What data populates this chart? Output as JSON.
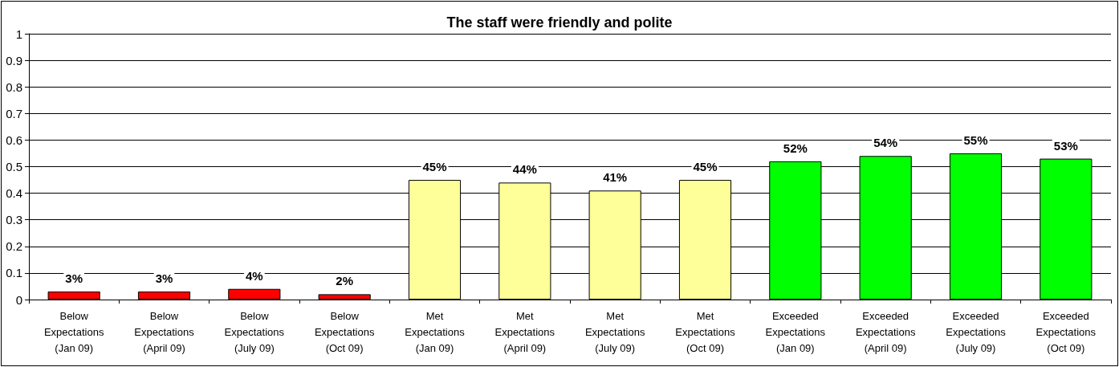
{
  "chart_data": {
    "type": "bar",
    "title": "The staff were friendly and polite",
    "categories": [
      "Below\nExpectations\n(Jan 09)",
      "Below\nExpectations\n(April 09)",
      "Below\nExpectations\n(July 09)",
      "Below\nExpectations\n(Oct 09)",
      "Met\nExpectations\n(Jan 09)",
      "Met\nExpectations\n(April 09)",
      "Met\nExpectations\n(July 09)",
      "Met\nExpectations\n(Oct 09)",
      "Exceeded\nExpectations\n(Jan 09)",
      "Exceeded\nExpectations\n(April 09)",
      "Exceeded\nExpectations\n(July 09)",
      "Exceeded\nExpectations\n(Oct 09)"
    ],
    "values": [
      0.03,
      0.03,
      0.04,
      0.02,
      0.45,
      0.44,
      0.41,
      0.45,
      0.52,
      0.54,
      0.55,
      0.53
    ],
    "value_labels": [
      "3%",
      "3%",
      "4%",
      "2%",
      "45%",
      "44%",
      "41%",
      "45%",
      "52%",
      "54%",
      "55%",
      "53%"
    ],
    "colors": [
      "#ff0000",
      "#ff0000",
      "#ff0000",
      "#ff0000",
      "#ffff99",
      "#ffff99",
      "#ffff99",
      "#ffff99",
      "#00ff00",
      "#00ff00",
      "#00ff00",
      "#00ff00"
    ],
    "ylim": [
      0,
      1
    ],
    "yticks": [
      0,
      0.1,
      0.2,
      0.3,
      0.4,
      0.5,
      0.6,
      0.7,
      0.8,
      0.9,
      1
    ],
    "grid": "y"
  }
}
